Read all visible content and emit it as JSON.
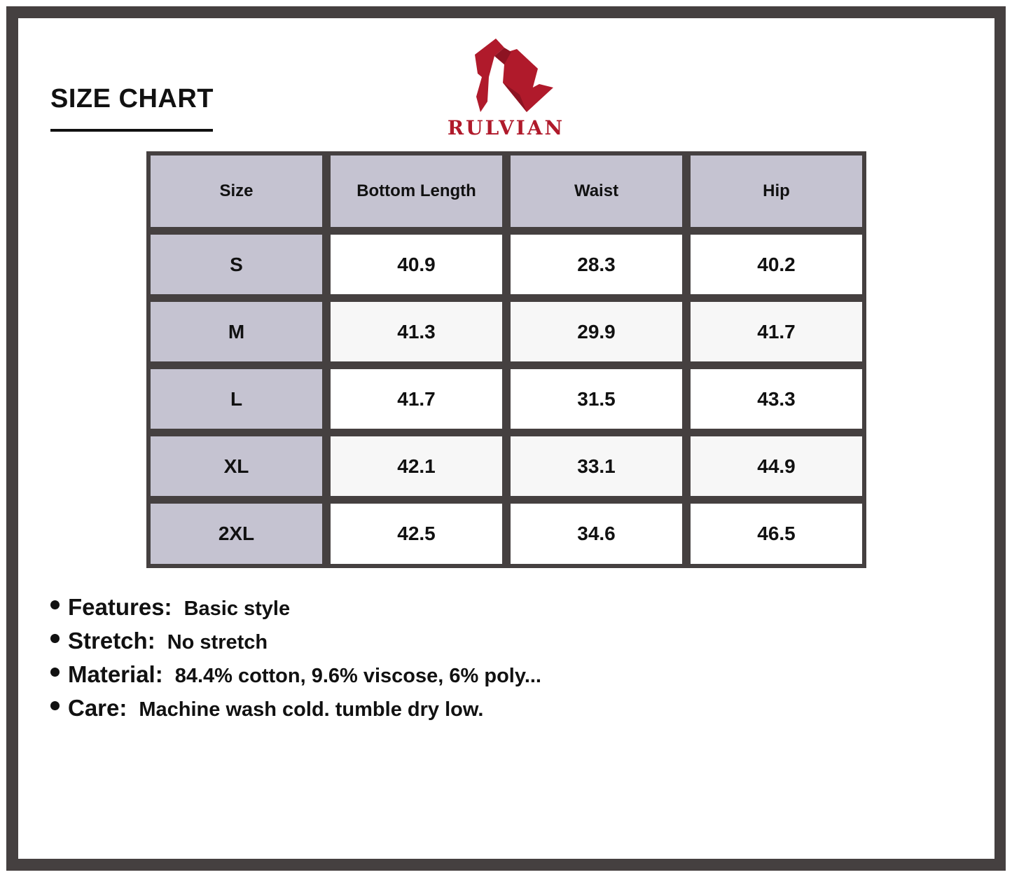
{
  "header": {
    "title": "SIZE CHART"
  },
  "brand": {
    "name": "RULVIAN",
    "color": "#b01a2b",
    "logo_icon": "rulvian-r-logo"
  },
  "table": {
    "columns": [
      "Size",
      "Bottom Length",
      "Waist",
      "Hip"
    ],
    "rows": [
      [
        "S",
        "40.9",
        "28.3",
        "40.2"
      ],
      [
        "M",
        "41.3",
        "29.9",
        "41.7"
      ],
      [
        "L",
        "41.7",
        "31.5",
        "43.3"
      ],
      [
        "XL",
        "42.1",
        "33.1",
        "44.9"
      ],
      [
        "2XL",
        "42.5",
        "34.6",
        "46.5"
      ]
    ],
    "colors": {
      "border": "#454040",
      "size_column": "#c5c3d1",
      "row_alt": "#f7f7f7"
    }
  },
  "features": [
    {
      "label": "Features:",
      "value": "Basic style"
    },
    {
      "label": "Stretch:",
      "value": "No stretch"
    },
    {
      "label": "Material:",
      "value": "84.4% cotton, 9.6% viscose, 6% poly..."
    },
    {
      "label": "Care:",
      "value": "Machine wash cold. tumble dry low."
    }
  ]
}
